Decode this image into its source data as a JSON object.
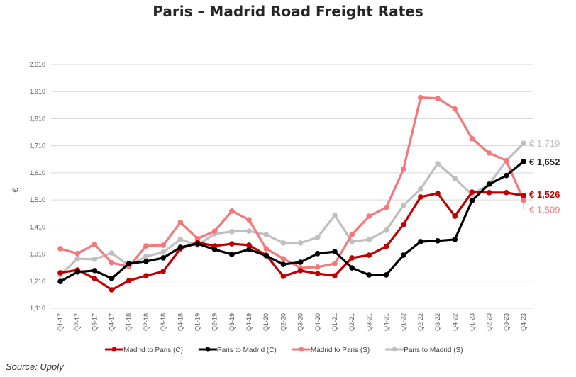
{
  "chart_data": {
    "type": "line",
    "title": "Paris – Madrid Road Freight Rates",
    "xlabel": "",
    "ylabel": "€",
    "ylim": [
      1110,
      2010
    ],
    "yticks": [
      "1,110",
      "1,210",
      "1,310",
      "1,410",
      "1,510",
      "1,610",
      "1,710",
      "1,810",
      "1,910",
      "2,010"
    ],
    "ytick_values": [
      1110,
      1210,
      1310,
      1410,
      1510,
      1610,
      1710,
      1810,
      1910,
      2010
    ],
    "grid": true,
    "legend_position": "bottom",
    "x": [
      "Q1-17",
      "Q2-17",
      "Q3-17",
      "Q4-17",
      "Q1-18",
      "Q2-18",
      "Q3-18",
      "Q4-18",
      "Q1-19",
      "Q2-19",
      "Q3-19",
      "Q4-19",
      "Q1-20",
      "Q2-20",
      "Q3-20",
      "Q4-20",
      "Q1-21",
      "Q2-21",
      "Q3-21",
      "Q4-21",
      "Q1-22",
      "Q2-22",
      "Q3-22",
      "Q4-22",
      "Q1-23",
      "Q2-23",
      "Q3-23",
      "Q4-23"
    ],
    "series": [
      {
        "name": "Madrid to Paris (C)",
        "color": "#c00000",
        "end_label": "€ 1,526",
        "values": [
          1241,
          1251,
          1220,
          1178,
          1212,
          1230,
          1246,
          1330,
          1353,
          1340,
          1348,
          1343,
          1306,
          1228,
          1249,
          1238,
          1230,
          1296,
          1306,
          1338,
          1419,
          1521,
          1534,
          1450,
          1539,
          1537,
          1537,
          1526
        ]
      },
      {
        "name": "Paris to Madrid (C)",
        "color": "#000000",
        "end_label": "€ 1,652",
        "values": [
          1209,
          1244,
          1249,
          1220,
          1275,
          1283,
          1296,
          1335,
          1348,
          1327,
          1309,
          1327,
          1304,
          1272,
          1280,
          1312,
          1319,
          1259,
          1233,
          1233,
          1306,
          1356,
          1359,
          1364,
          1508,
          1568,
          1600,
          1652
        ]
      },
      {
        "name": "Madrid to Paris (S)",
        "color": "#f4777a",
        "end_label": "€ 1,509",
        "values": [
          1330,
          1312,
          1346,
          1278,
          1264,
          1340,
          1343,
          1427,
          1367,
          1395,
          1469,
          1437,
          1330,
          1293,
          1259,
          1262,
          1275,
          1382,
          1450,
          1482,
          1623,
          1888,
          1885,
          1846,
          1736,
          1683,
          1655,
          1509
        ]
      },
      {
        "name": "Paris to Madrid (S)",
        "color": "#bfbfbf",
        "end_label": "€ 1,719",
        "values": [
          1233,
          1293,
          1291,
          1314,
          1267,
          1301,
          1317,
          1364,
          1343,
          1385,
          1393,
          1395,
          1382,
          1351,
          1351,
          1372,
          1453,
          1356,
          1364,
          1398,
          1490,
          1550,
          1644,
          1589,
          1529,
          1568,
          1655,
          1719
        ]
      }
    ]
  },
  "source": "Source: Upply"
}
